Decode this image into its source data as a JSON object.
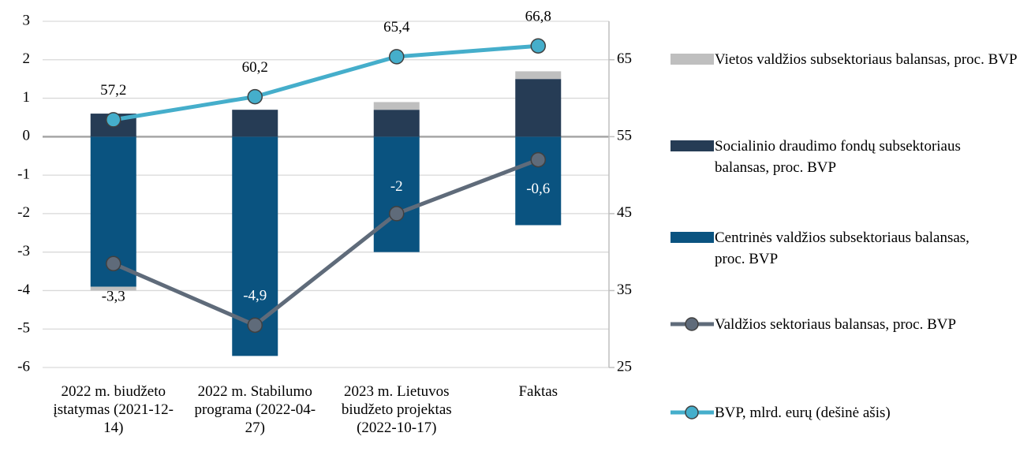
{
  "chart_data": {
    "type": "bar",
    "categories": [
      "2022 m. biudžeto įstatymas (2021-12-14)",
      "2022 m. Stabilumo programa (2022-04-27)",
      "2023 m. Lietuvos biudžeto projektas (2022-10-17)",
      "Faktas"
    ],
    "series": [
      {
        "name": "Vietos valdžios subsektoriaus balansas, proc. BVP",
        "type": "bar",
        "color": "#bfbfbf",
        "values": [
          -0.1,
          0,
          0.2,
          0.2
        ]
      },
      {
        "name": "Socialinio draudimo fondų subsektoriaus balansas, proc. BVP",
        "type": "bar",
        "color": "#263c55",
        "values": [
          0.6,
          0.7,
          0.7,
          1.5
        ]
      },
      {
        "name": "Centrinės valdžios subsektoriaus balansas, proc. BVP",
        "type": "bar",
        "color": "#0a5380",
        "values": [
          -3.9,
          -5.7,
          -3.0,
          -2.3
        ]
      },
      {
        "name": "Valdžios sektoriaus balansas, proc. BVP",
        "type": "line",
        "color": "#5f6b7a",
        "values": [
          -3.3,
          -4.9,
          -2,
          -0.6
        ],
        "value_labels": [
          "-3,3",
          "-4,9",
          "-2",
          "-0,6"
        ]
      },
      {
        "name": "BVP, mlrd. eurų (dešinė ašis)",
        "type": "line",
        "axis": "y2",
        "color": "#45aecb",
        "values": [
          57.2,
          60.2,
          65.4,
          66.8
        ],
        "value_labels": [
          "57,2",
          "60,2",
          "65,4",
          "66,8"
        ]
      }
    ],
    "ylim": [
      -6,
      3
    ],
    "yticks": [
      -6,
      -5,
      -4,
      -3,
      -2,
      -1,
      0,
      1,
      2,
      3
    ],
    "y2lim": [
      25,
      70
    ],
    "y2ticks": [
      25,
      35,
      45,
      55,
      65
    ],
    "grid": true,
    "legend": "right"
  }
}
